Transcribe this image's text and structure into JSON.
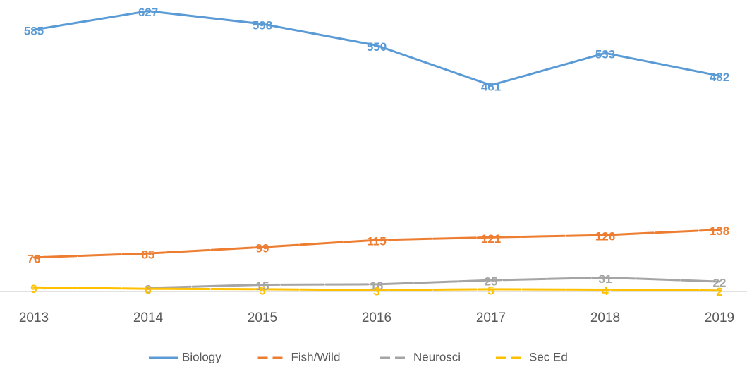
{
  "chart_data": {
    "type": "line",
    "categories": [
      "2013",
      "2014",
      "2015",
      "2016",
      "2017",
      "2018",
      "2019"
    ],
    "series": [
      {
        "name": "Biology",
        "color": "#5b9bd5",
        "dash": false,
        "values": [
          585,
          627,
          598,
          550,
          461,
          533,
          482
        ]
      },
      {
        "name": "Fish/Wild",
        "color": "#ed7d31",
        "dash": true,
        "values": [
          76,
          85,
          99,
          115,
          121,
          126,
          138
        ]
      },
      {
        "name": "Neurosci",
        "color": "#a5a5a5",
        "dash": true,
        "values": [
          null,
          8,
          15,
          16,
          25,
          31,
          22
        ]
      },
      {
        "name": "Sec Ed",
        "color": "#ffc000",
        "dash": true,
        "values": [
          9,
          6,
          5,
          3,
          5,
          4,
          2
        ]
      }
    ],
    "ylim": [
      0,
      650
    ],
    "legend": "bottom"
  }
}
